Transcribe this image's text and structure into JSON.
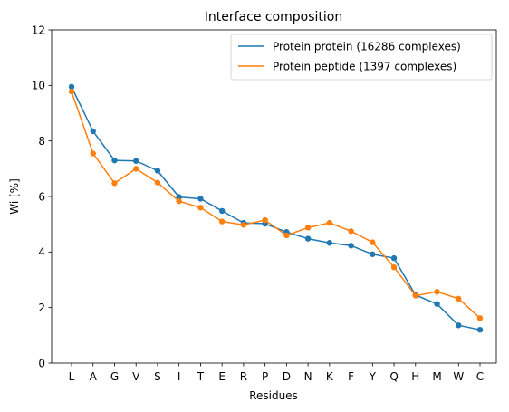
{
  "chart_data": {
    "type": "line",
    "title": "Interface composition",
    "xlabel": "Residues",
    "ylabel": "Wi [%]",
    "ylim": [
      0,
      12
    ],
    "yticks": [
      0,
      2,
      4,
      6,
      8,
      10,
      12
    ],
    "grid": false,
    "legend_position": "top-right",
    "categories": [
      "L",
      "A",
      "G",
      "V",
      "S",
      "I",
      "T",
      "E",
      "R",
      "P",
      "D",
      "N",
      "K",
      "F",
      "Y",
      "Q",
      "H",
      "M",
      "W",
      "C"
    ],
    "series": [
      {
        "name": "Protein protein (16286 complexes)",
        "color": "#1f77b4",
        "values": [
          9.95,
          8.35,
          7.3,
          7.28,
          6.93,
          5.98,
          5.92,
          5.48,
          5.05,
          5.02,
          4.72,
          4.48,
          4.33,
          4.23,
          3.92,
          3.78,
          2.45,
          2.13,
          1.36,
          1.2
        ]
      },
      {
        "name": "Protein peptide (1397 complexes)",
        "color": "#ff7f0e",
        "values": [
          9.78,
          7.55,
          6.48,
          7.0,
          6.5,
          5.83,
          5.6,
          5.1,
          4.98,
          5.15,
          4.6,
          4.88,
          5.05,
          4.75,
          4.35,
          3.45,
          2.43,
          2.57,
          2.32,
          1.62
        ]
      }
    ]
  }
}
